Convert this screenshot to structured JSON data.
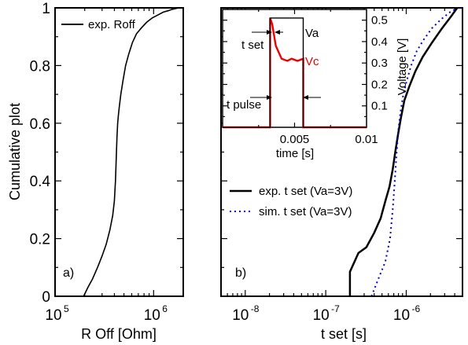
{
  "chart_data": [
    {
      "type": "line",
      "panel_tag": "a)",
      "xlabel": "R Off [Ohm]",
      "ylabel": "Cumulative plot",
      "xscale": "log",
      "xlim": [
        100000,
        2000000
      ],
      "ylim": [
        0,
        1
      ],
      "xticks": [
        {
          "base": "10",
          "exp": "5",
          "value": 100000
        },
        {
          "base": "10",
          "exp": "6",
          "value": 1000000
        }
      ],
      "yticks": [
        "0",
        "0.2",
        "0.4",
        "0.6",
        "0.8",
        "1"
      ],
      "legend_position": "top-left",
      "series": [
        {
          "name": "exp. Roff",
          "color": "#000000",
          "style": "solid",
          "x": [
            195000,
            215000,
            240000,
            270000,
            300000,
            330000,
            360000,
            385000,
            400000,
            410000,
            418000,
            425000,
            432000,
            440000,
            450000,
            465000,
            490000,
            520000,
            560000,
            610000,
            670000,
            750000,
            850000,
            970000,
            1100000,
            1250000,
            1400000,
            1550000,
            1800000
          ],
          "y": [
            0.0,
            0.03,
            0.06,
            0.1,
            0.14,
            0.18,
            0.23,
            0.28,
            0.33,
            0.4,
            0.48,
            0.55,
            0.6,
            0.63,
            0.66,
            0.7,
            0.75,
            0.8,
            0.84,
            0.88,
            0.91,
            0.93,
            0.95,
            0.965,
            0.975,
            0.985,
            0.99,
            0.995,
            1.0
          ]
        }
      ]
    },
    {
      "type": "line",
      "panel_tag": "b)",
      "xlabel": "t set [s]",
      "ylabel": "",
      "xscale": "log",
      "xlim": [
        5e-09,
        5e-06
      ],
      "ylim": [
        0,
        1
      ],
      "xticks": [
        {
          "base": "10",
          "exp": "-8",
          "value": 1e-08
        },
        {
          "base": "10",
          "exp": "-7",
          "value": 1e-07
        },
        {
          "base": "10",
          "exp": "-6",
          "value": 1e-06
        }
      ],
      "legend_position": "center-left",
      "series": [
        {
          "name": "exp. t set  (Va=3V)",
          "color": "#000000",
          "style": "solid",
          "x": [
            2e-07,
            2e-07,
            2.55e-07,
            3.2e-07,
            4e-07,
            4.8e-07,
            5.5e-07,
            6.2e-07,
            6.8e-07,
            7.3e-07,
            7.9e-07,
            8.6e-07,
            9.5e-07,
            1.1e-06,
            1.3e-06,
            1.6e-06,
            2.1e-06,
            2.8e-06,
            3.6e-06,
            4.3e-06
          ],
          "y": [
            0.0,
            0.085,
            0.15,
            0.17,
            0.22,
            0.27,
            0.33,
            0.38,
            0.44,
            0.5,
            0.56,
            0.62,
            0.68,
            0.73,
            0.78,
            0.83,
            0.88,
            0.93,
            0.97,
            1.0
          ]
        },
        {
          "name": "sim. t set (Va=3V)",
          "color": "#0000cc",
          "style": "dotted",
          "x": [
            3.7e-07,
            4.5e-07,
            5.5e-07,
            6.3e-07,
            6.8e-07,
            7.2e-07,
            7.6e-07,
            8e-07,
            8.5e-07,
            9.2e-07,
            1.02e-06,
            1.15e-06,
            1.35e-06,
            1.65e-06,
            2.1e-06,
            2.7e-06,
            3.5e-06,
            4.4e-06
          ],
          "y": [
            0.0,
            0.06,
            0.12,
            0.2,
            0.3,
            0.4,
            0.5,
            0.58,
            0.64,
            0.7,
            0.75,
            0.8,
            0.85,
            0.89,
            0.93,
            0.96,
            0.985,
            1.0
          ]
        }
      ]
    },
    {
      "type": "line",
      "inset": true,
      "xlabel": "time [s]",
      "ylabel": "Voltage [V]",
      "xlim": [
        0,
        0.01
      ],
      "ylim": [
        0,
        0.55
      ],
      "xticks": [
        "0.005",
        "0.01"
      ],
      "yticks": [
        "0.1",
        "0.2",
        "0.3",
        "0.4",
        "0.5"
      ],
      "annotations": [
        "t set",
        "t pulse"
      ],
      "series": [
        {
          "name": "Va",
          "color": "#000000",
          "x": [
            0,
            0.0033,
            0.0033,
            0.0056,
            0.0056,
            0.01
          ],
          "y": [
            0.0,
            0.0,
            0.51,
            0.51,
            0.0,
            0.0
          ]
        },
        {
          "name": "Vc",
          "color": "#ee0000",
          "x": [
            0,
            0.0033,
            0.0033,
            0.00345,
            0.0037,
            0.0041,
            0.0045,
            0.0048,
            0.0052,
            0.0056,
            0.0056,
            0.01
          ],
          "y": [
            0.0,
            0.0,
            0.51,
            0.48,
            0.38,
            0.32,
            0.31,
            0.32,
            0.31,
            0.32,
            0.0,
            0.0
          ]
        }
      ]
    }
  ]
}
